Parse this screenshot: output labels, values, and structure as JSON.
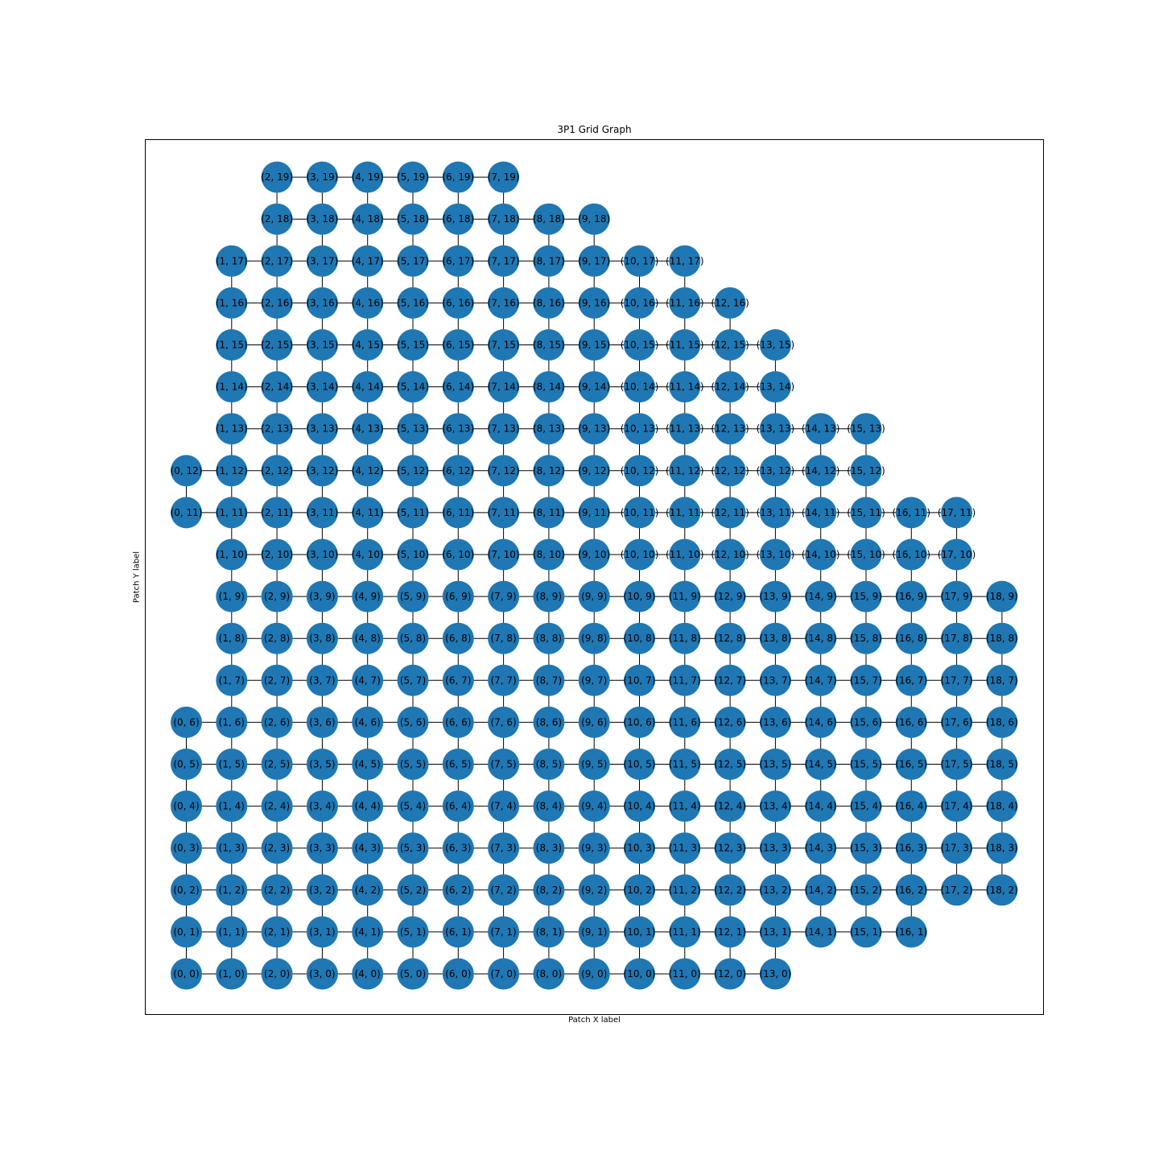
{
  "title": "3P1 Grid Graph",
  "xlabel": "Patch X label",
  "ylabel": "Patch Y label",
  "node_color": "#1f77b4",
  "edge_color": "#000000",
  "grid": {
    "rows": [
      {
        "y": 0,
        "x": [
          0,
          13
        ]
      },
      {
        "y": 1,
        "x": [
          0,
          16
        ]
      },
      {
        "y": 2,
        "x": [
          0,
          18
        ]
      },
      {
        "y": 3,
        "x": [
          0,
          18
        ]
      },
      {
        "y": 4,
        "x": [
          0,
          18
        ]
      },
      {
        "y": 5,
        "x": [
          0,
          18
        ]
      },
      {
        "y": 6,
        "x": [
          0,
          18
        ]
      },
      {
        "y": 7,
        "x": [
          1,
          18
        ]
      },
      {
        "y": 8,
        "x": [
          1,
          18
        ]
      },
      {
        "y": 9,
        "x": [
          1,
          18
        ]
      },
      {
        "y": 10,
        "x": [
          1,
          17
        ]
      },
      {
        "y": 11,
        "x": [
          0,
          17
        ]
      },
      {
        "y": 12,
        "x": [
          0,
          15
        ]
      },
      {
        "y": 13,
        "x": [
          1,
          15
        ]
      },
      {
        "y": 14,
        "x": [
          1,
          13
        ]
      },
      {
        "y": 15,
        "x": [
          1,
          13
        ]
      },
      {
        "y": 16,
        "x": [
          1,
          12
        ]
      },
      {
        "y": 17,
        "x": [
          1,
          11
        ]
      },
      {
        "y": 18,
        "x": [
          2,
          9
        ]
      },
      {
        "y": 19,
        "x": [
          2,
          7
        ]
      }
    ]
  }
}
